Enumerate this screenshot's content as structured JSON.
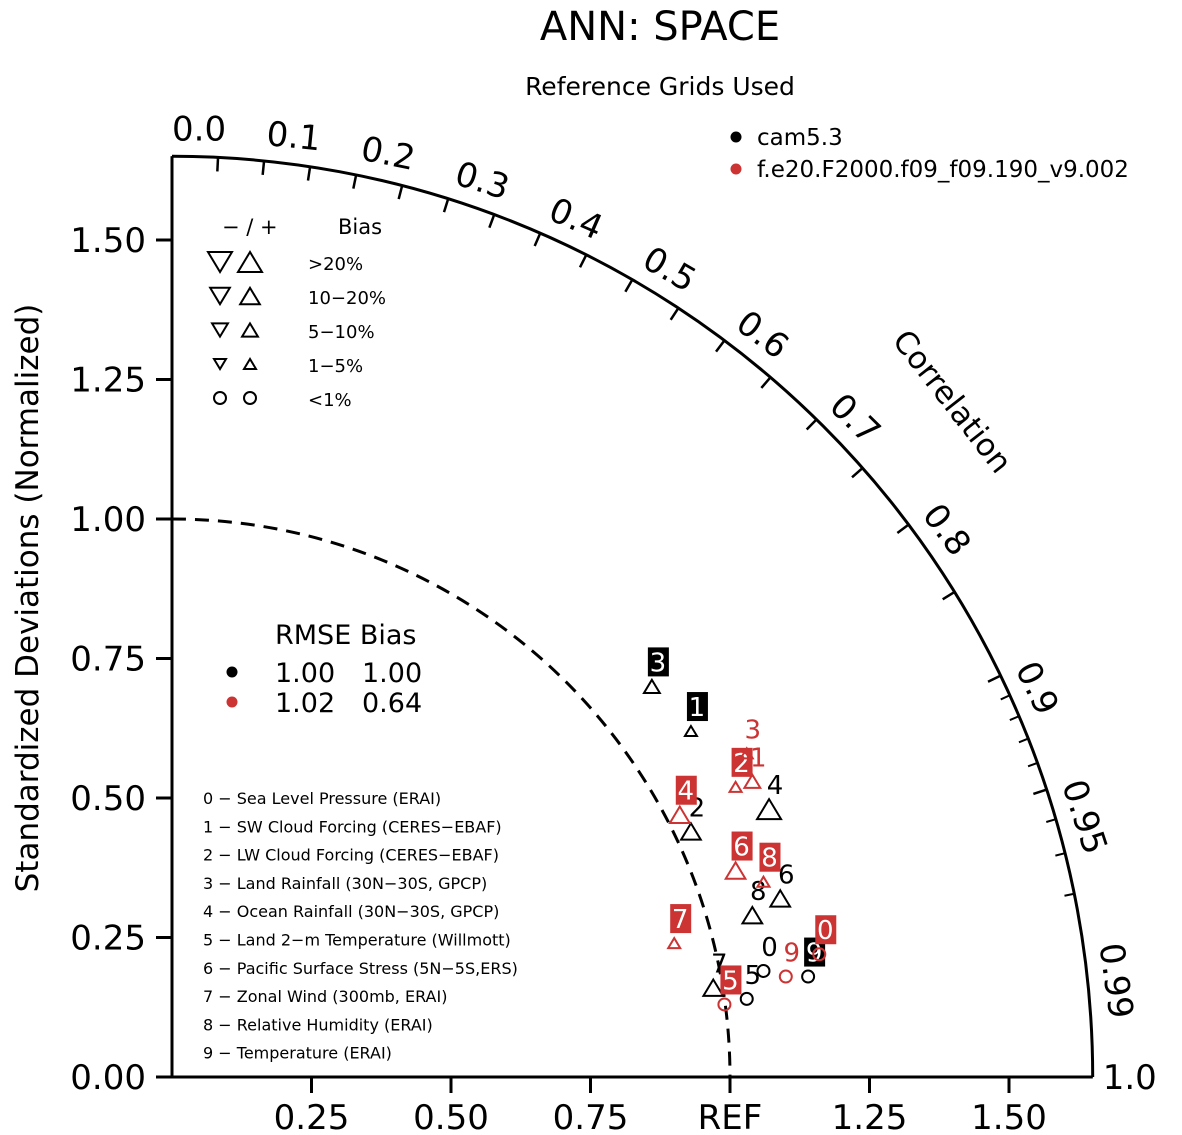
{
  "chart_data": {
    "type": "taylor",
    "title": "ANN: SPACE",
    "subtitle": "Reference Grids Used",
    "ylabel": "Standardized Deviations (Normalized)",
    "arc_label": "Correlation",
    "ref_label": "REF",
    "std_max": 1.65,
    "y_ticks": [
      "0.00",
      "0.25",
      "0.50",
      "0.75",
      "1.00",
      "1.25",
      "1.50"
    ],
    "y_tick_values": [
      0,
      0.25,
      0.5,
      0.75,
      1.0,
      1.25,
      1.5
    ],
    "x_ticks": [
      "0.25",
      "0.50",
      "0.75",
      "REF",
      "1.25",
      "1.50"
    ],
    "x_tick_values": [
      0.25,
      0.5,
      0.75,
      1.0,
      1.25,
      1.5
    ],
    "corr_labels": [
      "0.0",
      "0.1",
      "0.2",
      "0.3",
      "0.4",
      "0.5",
      "0.6",
      "0.7",
      "0.8",
      "0.9",
      "0.95",
      "0.99",
      "1.0"
    ],
    "corr_label_values": [
      0.0,
      0.1,
      0.2,
      0.3,
      0.4,
      0.5,
      0.6,
      0.7,
      0.8,
      0.9,
      0.95,
      0.99,
      1.0
    ],
    "series": [
      {
        "name": "cam5.3",
        "color": "#000000"
      },
      {
        "name": "f.e20.F2000.f09_f09.190_v9.002",
        "color": "#cc3333"
      }
    ],
    "bias_legend": {
      "header": [
        "− / +",
        "Bias"
      ],
      "rows": [
        {
          "label": ">20%",
          "shape": "triangle",
          "size": 1.0
        },
        {
          "label": "10−20%",
          "shape": "triangle",
          "size": 0.82
        },
        {
          "label": "5−10%",
          "shape": "triangle",
          "size": 0.66
        },
        {
          "label": "1−5%",
          "shape": "triangle",
          "size": 0.5
        },
        {
          "label": "<1%",
          "shape": "circle",
          "size": 0.6
        }
      ]
    },
    "rmse_table": {
      "header": "RMSE Bias",
      "rows": [
        {
          "color": "#000000",
          "rmse": "1.00",
          "bias": "1.00"
        },
        {
          "color": "#cc3333",
          "rmse": "1.02",
          "bias": "0.64"
        }
      ]
    },
    "variables": [
      "0 − Sea Level Pressure (ERAI)",
      "1 − SW Cloud Forcing (CERES−EBAF)",
      "2 − LW Cloud Forcing (CERES−EBAF)",
      "3 − Land Rainfall (30N−30S, GPCP)",
      "4 − Ocean Rainfall (30N−30S, GPCP)",
      "5 − Land 2−m Temperature (Willmott)",
      "6 − Pacific Surface Stress (5N−5S,ERS)",
      "7 − Zonal Wind (300mb, ERAI)",
      "8 − Relative Humidity (ERAI)",
      "9 − Temperature (ERAI)"
    ],
    "points": [
      {
        "series": 0,
        "id": "0",
        "x": 1.06,
        "y": 0.19,
        "shape": "circle",
        "size": 0.6,
        "boxed": false
      },
      {
        "series": 0,
        "id": "1",
        "x": 0.93,
        "y": 0.62,
        "shape": "triangle",
        "size": 0.5,
        "boxed": true
      },
      {
        "series": 0,
        "id": "2",
        "x": 0.93,
        "y": 0.44,
        "shape": "triangle",
        "size": 0.82,
        "boxed": false
      },
      {
        "series": 0,
        "id": "3",
        "x": 0.86,
        "y": 0.7,
        "shape": "triangle",
        "size": 0.66,
        "boxed": true
      },
      {
        "series": 0,
        "id": "4",
        "x": 1.07,
        "y": 0.48,
        "shape": "triangle",
        "size": 1.0,
        "boxed": false
      },
      {
        "series": 0,
        "id": "5",
        "x": 1.03,
        "y": 0.14,
        "shape": "circle",
        "size": 0.6,
        "boxed": false
      },
      {
        "series": 0,
        "id": "6",
        "x": 1.09,
        "y": 0.32,
        "shape": "triangle",
        "size": 0.82,
        "boxed": false
      },
      {
        "series": 0,
        "id": "7",
        "x": 0.97,
        "y": 0.16,
        "shape": "triangle",
        "size": 0.82,
        "boxed": false
      },
      {
        "series": 0,
        "id": "8",
        "x": 1.04,
        "y": 0.29,
        "shape": "triangle",
        "size": 0.82,
        "boxed": false
      },
      {
        "series": 0,
        "id": "9",
        "x": 1.14,
        "y": 0.18,
        "shape": "circle",
        "size": 0.6,
        "boxed": true
      },
      {
        "series": 1,
        "id": "0",
        "x": 1.16,
        "y": 0.22,
        "shape": "circle",
        "size": 0.6,
        "boxed": true
      },
      {
        "series": 1,
        "id": "1",
        "x": 1.04,
        "y": 0.53,
        "shape": "triangle",
        "size": 0.66,
        "boxed": false
      },
      {
        "series": 1,
        "id": "2",
        "x": 1.01,
        "y": 0.52,
        "shape": "triangle",
        "size": 0.5,
        "boxed": true
      },
      {
        "series": 1,
        "id": "3",
        "x": 1.03,
        "y": 0.58,
        "shape": "triangle",
        "size": 0.5,
        "boxed": false
      },
      {
        "series": 1,
        "id": "4",
        "x": 0.91,
        "y": 0.47,
        "shape": "triangle",
        "size": 0.82,
        "boxed": true
      },
      {
        "series": 1,
        "id": "5",
        "x": 0.99,
        "y": 0.13,
        "shape": "circle",
        "size": 0.6,
        "boxed": true
      },
      {
        "series": 1,
        "id": "6",
        "x": 1.01,
        "y": 0.37,
        "shape": "triangle",
        "size": 0.82,
        "boxed": true
      },
      {
        "series": 1,
        "id": "7",
        "x": 0.9,
        "y": 0.24,
        "shape": "triangle",
        "size": 0.5,
        "boxed": true
      },
      {
        "series": 1,
        "id": "8",
        "x": 1.06,
        "y": 0.35,
        "shape": "triangle",
        "size": 0.5,
        "boxed": true
      },
      {
        "series": 1,
        "id": "9",
        "x": 1.1,
        "y": 0.18,
        "shape": "circle",
        "size": 0.6,
        "boxed": false
      }
    ]
  }
}
